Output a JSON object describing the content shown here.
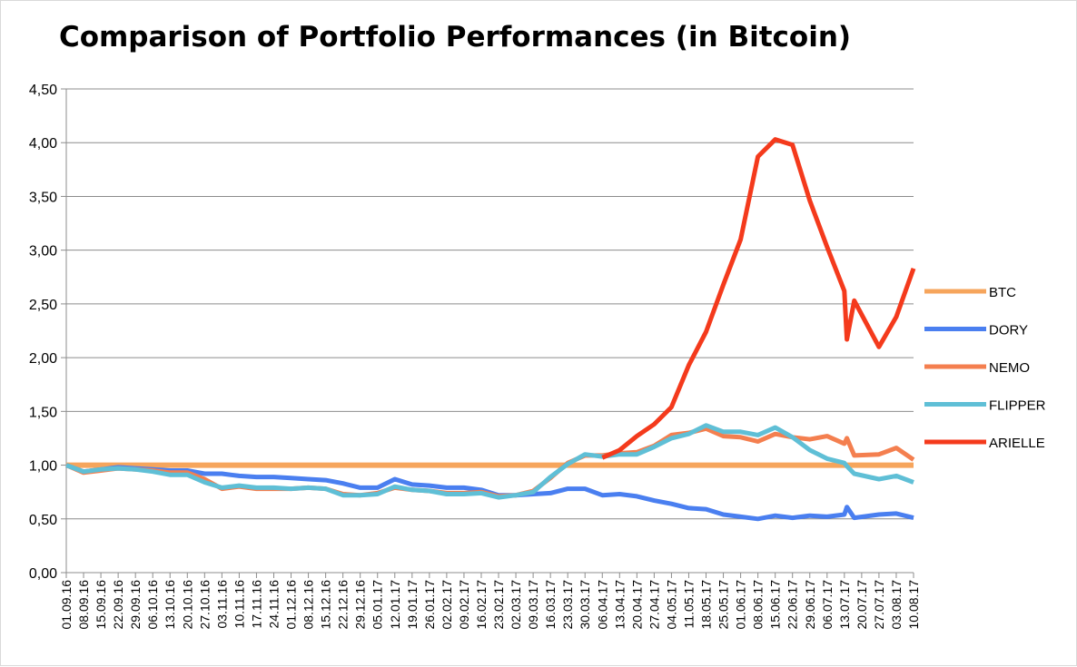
{
  "chart_data": {
    "type": "line",
    "title": "Comparison of Portfolio Performances (in Bitcoin)",
    "xlabel": "",
    "ylabel": "",
    "ylim": [
      0,
      4.5
    ],
    "yticks": [
      "0,00",
      "0,50",
      "1,00",
      "1,50",
      "2,00",
      "2,50",
      "3,00",
      "3,50",
      "4,00",
      "4,50"
    ],
    "grid": true,
    "legend_position": "right",
    "x": [
      "01.09.16",
      "08.09.16",
      "15.09.16",
      "22.09.16",
      "29.09.16",
      "06.10.16",
      "13.10.16",
      "20.10.16",
      "27.10.16",
      "03.11.16",
      "10.11.16",
      "17.11.16",
      "24.11.16",
      "01.12.16",
      "08.12.16",
      "15.12.16",
      "22.12.16",
      "29.12.16",
      "05.01.17",
      "12.01.17",
      "19.01.17",
      "26.01.17",
      "02.02.17",
      "09.02.17",
      "16.02.17",
      "23.02.17",
      "02.03.17",
      "09.03.17",
      "16.03.17",
      "23.03.17",
      "30.03.17",
      "06.04.17",
      "13.04.17",
      "20.04.17",
      "27.04.17",
      "04.05.17",
      "11.05.17",
      "18.05.17",
      "25.05.17",
      "01.06.17",
      "08.06.17",
      "15.06.17",
      "22.06.17",
      "29.06.17",
      "06.07.17",
      "13.07.17",
      "20.07.17",
      "27.07.17",
      "03.08.17",
      "10.08.17"
    ],
    "x_tick_labels": [
      "01.09.16",
      "08.09.16",
      "15.09.16",
      "22.09.16",
      "29.09.16",
      "06.10.16",
      "13.10.16",
      "20.10.16",
      "27.10.16",
      "03.11.16",
      "10.11.16",
      "17.11.16",
      "24.11.16",
      "01.12.16",
      "08.12.16",
      "15.12.16",
      "22.12.16",
      "29.12.16",
      "05.01.17",
      "12.01.17",
      "19.01.17",
      "26.01.17",
      "02.02.17",
      "09.02.17",
      "16.02.17",
      "23.02.17",
      "02.03.17",
      "09.03.17",
      "16.03.17",
      "23.03.17",
      "30.03.17",
      "06.04.17",
      "13.04.17",
      "20.04.17",
      "27.04.17",
      "04.05.17",
      "11.05.17",
      "18.05.17",
      "25.05.17",
      "01.06.17",
      "08.06.17",
      "15.06.17",
      "22.06.17",
      "29.06.17",
      "06.07.17",
      "13.07.17",
      "20.07.17",
      "27.07.17",
      "03.08.17",
      "10.08.17"
    ],
    "series": [
      {
        "name": "BTC",
        "color": "#f6a55c",
        "points": [
          [
            "01.09.16",
            1.0
          ],
          [
            "10.08.17",
            1.0
          ]
        ]
      },
      {
        "name": "DORY",
        "color": "#4a7ff0",
        "points": [
          [
            "01.09.16",
            1.0
          ],
          [
            "08.09.16",
            0.94
          ],
          [
            "15.09.16",
            0.96
          ],
          [
            "22.09.16",
            0.98
          ],
          [
            "29.09.16",
            0.97
          ],
          [
            "06.10.16",
            0.96
          ],
          [
            "13.10.16",
            0.95
          ],
          [
            "20.10.16",
            0.95
          ],
          [
            "27.10.16",
            0.92
          ],
          [
            "03.11.16",
            0.92
          ],
          [
            "10.11.16",
            0.9
          ],
          [
            "17.11.16",
            0.89
          ],
          [
            "24.11.16",
            0.89
          ],
          [
            "01.12.16",
            0.88
          ],
          [
            "08.12.16",
            0.87
          ],
          [
            "15.12.16",
            0.86
          ],
          [
            "22.12.16",
            0.83
          ],
          [
            "29.12.16",
            0.79
          ],
          [
            "05.01.17",
            0.79
          ],
          [
            "12.01.17",
            0.87
          ],
          [
            "19.01.17",
            0.82
          ],
          [
            "26.01.17",
            0.81
          ],
          [
            "02.02.17",
            0.79
          ],
          [
            "09.02.17",
            0.79
          ],
          [
            "16.02.17",
            0.77
          ],
          [
            "23.02.17",
            0.72
          ],
          [
            "02.03.17",
            0.72
          ],
          [
            "09.03.17",
            0.73
          ],
          [
            "16.03.17",
            0.74
          ],
          [
            "23.03.17",
            0.78
          ],
          [
            "30.03.17",
            0.78
          ],
          [
            "06.04.17",
            0.72
          ],
          [
            "13.04.17",
            0.73
          ],
          [
            "20.04.17",
            0.71
          ],
          [
            "27.04.17",
            0.67
          ],
          [
            "04.05.17",
            0.64
          ],
          [
            "11.05.17",
            0.6
          ],
          [
            "18.05.17",
            0.59
          ],
          [
            "25.05.17",
            0.54
          ],
          [
            "01.06.17",
            0.52
          ],
          [
            "08.06.17",
            0.5
          ],
          [
            "15.06.17",
            0.53
          ],
          [
            "22.06.17",
            0.51
          ],
          [
            "29.06.17",
            0.53
          ],
          [
            "06.07.17",
            0.52
          ],
          [
            "13.07.17",
            0.54
          ],
          [
            "14.07.17",
            0.61
          ],
          [
            "17.07.17",
            0.51
          ],
          [
            "27.07.17",
            0.54
          ],
          [
            "03.08.17",
            0.55
          ],
          [
            "10.08.17",
            0.51
          ]
        ]
      },
      {
        "name": "NEMO",
        "color": "#f47f4f",
        "points": [
          [
            "01.09.16",
            1.0
          ],
          [
            "08.09.16",
            0.93
          ],
          [
            "15.09.16",
            0.95
          ],
          [
            "22.09.16",
            0.97
          ],
          [
            "29.09.16",
            0.96
          ],
          [
            "06.10.16",
            0.95
          ],
          [
            "13.10.16",
            0.93
          ],
          [
            "20.10.16",
            0.93
          ],
          [
            "27.10.16",
            0.87
          ],
          [
            "03.11.16",
            0.78
          ],
          [
            "10.11.16",
            0.8
          ],
          [
            "17.11.16",
            0.78
          ],
          [
            "24.11.16",
            0.78
          ],
          [
            "01.12.16",
            0.78
          ],
          [
            "08.12.16",
            0.79
          ],
          [
            "15.12.16",
            0.78
          ],
          [
            "22.12.16",
            0.73
          ],
          [
            "29.12.16",
            0.72
          ],
          [
            "05.01.17",
            0.74
          ],
          [
            "12.01.17",
            0.79
          ],
          [
            "19.01.17",
            0.77
          ],
          [
            "26.01.17",
            0.76
          ],
          [
            "02.02.17",
            0.74
          ],
          [
            "09.02.17",
            0.74
          ],
          [
            "16.02.17",
            0.75
          ],
          [
            "23.02.17",
            0.71
          ],
          [
            "02.03.17",
            0.72
          ],
          [
            "09.03.17",
            0.76
          ],
          [
            "16.03.17",
            0.88
          ],
          [
            "23.03.17",
            1.02
          ],
          [
            "30.03.17",
            1.09
          ],
          [
            "06.04.17",
            1.09
          ],
          [
            "13.04.17",
            1.11
          ],
          [
            "20.04.17",
            1.12
          ],
          [
            "27.04.17",
            1.18
          ],
          [
            "04.05.17",
            1.28
          ],
          [
            "11.05.17",
            1.3
          ],
          [
            "18.05.17",
            1.34
          ],
          [
            "25.05.17",
            1.27
          ],
          [
            "01.06.17",
            1.26
          ],
          [
            "08.06.17",
            1.22
          ],
          [
            "15.06.17",
            1.29
          ],
          [
            "22.06.17",
            1.26
          ],
          [
            "29.06.17",
            1.24
          ],
          [
            "06.07.17",
            1.27
          ],
          [
            "13.07.17",
            1.2
          ],
          [
            "14.07.17",
            1.25
          ],
          [
            "17.07.17",
            1.09
          ],
          [
            "27.07.17",
            1.1
          ],
          [
            "03.08.17",
            1.16
          ],
          [
            "10.08.17",
            1.05
          ]
        ]
      },
      {
        "name": "FLIPPER",
        "color": "#5fbfd6",
        "points": [
          [
            "01.09.16",
            1.0
          ],
          [
            "08.09.16",
            0.94
          ],
          [
            "15.09.16",
            0.96
          ],
          [
            "22.09.16",
            0.97
          ],
          [
            "29.09.16",
            0.96
          ],
          [
            "06.10.16",
            0.94
          ],
          [
            "13.10.16",
            0.91
          ],
          [
            "20.10.16",
            0.91
          ],
          [
            "27.10.16",
            0.84
          ],
          [
            "03.11.16",
            0.79
          ],
          [
            "10.11.16",
            0.81
          ],
          [
            "17.11.16",
            0.79
          ],
          [
            "24.11.16",
            0.79
          ],
          [
            "01.12.16",
            0.78
          ],
          [
            "08.12.16",
            0.79
          ],
          [
            "15.12.16",
            0.78
          ],
          [
            "22.12.16",
            0.72
          ],
          [
            "29.12.16",
            0.72
          ],
          [
            "05.01.17",
            0.73
          ],
          [
            "12.01.17",
            0.8
          ],
          [
            "19.01.17",
            0.77
          ],
          [
            "26.01.17",
            0.76
          ],
          [
            "02.02.17",
            0.73
          ],
          [
            "09.02.17",
            0.73
          ],
          [
            "16.02.17",
            0.74
          ],
          [
            "23.02.17",
            0.7
          ],
          [
            "02.03.17",
            0.72
          ],
          [
            "09.03.17",
            0.75
          ],
          [
            "16.03.17",
            0.89
          ],
          [
            "23.03.17",
            1.01
          ],
          [
            "30.03.17",
            1.1
          ],
          [
            "06.04.17",
            1.08
          ],
          [
            "13.04.17",
            1.1
          ],
          [
            "20.04.17",
            1.1
          ],
          [
            "27.04.17",
            1.17
          ],
          [
            "04.05.17",
            1.25
          ],
          [
            "11.05.17",
            1.29
          ],
          [
            "18.05.17",
            1.37
          ],
          [
            "25.05.17",
            1.31
          ],
          [
            "01.06.17",
            1.31
          ],
          [
            "08.06.17",
            1.28
          ],
          [
            "15.06.17",
            1.35
          ],
          [
            "22.06.17",
            1.26
          ],
          [
            "29.06.17",
            1.14
          ],
          [
            "06.07.17",
            1.06
          ],
          [
            "13.07.17",
            1.02
          ],
          [
            "14.07.17",
            0.99
          ],
          [
            "17.07.17",
            0.92
          ],
          [
            "27.07.17",
            0.87
          ],
          [
            "03.08.17",
            0.9
          ],
          [
            "10.08.17",
            0.84
          ]
        ]
      },
      {
        "name": "ARIELLE",
        "color": "#f43a1c",
        "points": [
          [
            "06.04.17",
            1.07
          ],
          [
            "13.04.17",
            1.14
          ],
          [
            "20.04.17",
            1.27
          ],
          [
            "27.04.17",
            1.38
          ],
          [
            "04.05.17",
            1.54
          ],
          [
            "11.05.17",
            1.93
          ],
          [
            "18.05.17",
            2.24
          ],
          [
            "25.05.17",
            2.68
          ],
          [
            "01.06.17",
            3.1
          ],
          [
            "08.06.17",
            3.87
          ],
          [
            "15.06.17",
            4.03
          ],
          [
            "22.06.17",
            3.98
          ],
          [
            "29.06.17",
            3.46
          ],
          [
            "06.07.17",
            3.03
          ],
          [
            "13.07.17",
            2.62
          ],
          [
            "14.07.17",
            2.17
          ],
          [
            "17.07.17",
            2.53
          ],
          [
            "27.07.17",
            2.1
          ],
          [
            "03.08.17",
            2.38
          ],
          [
            "10.08.17",
            2.83
          ]
        ]
      }
    ]
  }
}
